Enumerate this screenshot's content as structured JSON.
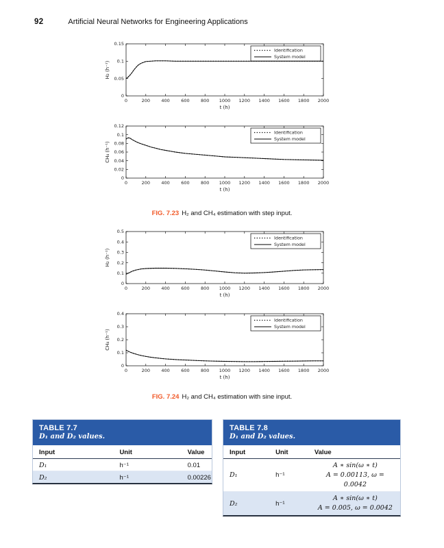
{
  "page": {
    "number": "92",
    "running_title": "Artificial Neural Networks for Engineering Applications"
  },
  "colors": {
    "accent_orange": "#f15a29",
    "table_header_blue": "#2a5ba7",
    "table_row_alt": "#dbe5f3",
    "line_color": "#000000"
  },
  "figures": [
    {
      "caption_label": "FIG. 7.23",
      "caption_text": "H₂ and CH₄ estimation with step input."
    },
    {
      "caption_label": "FIG. 7.24",
      "caption_text": "H₂ and CH₄ estimation with sine input."
    }
  ],
  "chart_data": [
    {
      "id": "fig723-h2-step",
      "type": "line",
      "title": "",
      "xlabel": "t (h)",
      "ylabel": "H₂ (h⁻¹)",
      "xlim": [
        0,
        2000
      ],
      "ylim": [
        0,
        0.15
      ],
      "xticks": [
        0,
        200,
        400,
        600,
        800,
        1000,
        1200,
        1400,
        1600,
        1800,
        2000
      ],
      "yticks": [
        0,
        0.05,
        0.1,
        0.15
      ],
      "grid": false,
      "legend_position": "top-right",
      "x": [
        0,
        20,
        40,
        60,
        80,
        100,
        120,
        140,
        160,
        180,
        200,
        250,
        300,
        400,
        500,
        600,
        800,
        1000,
        1200,
        1400,
        1600,
        1800,
        2000
      ],
      "series": [
        {
          "name": "Identification",
          "style": "dotted",
          "values": [
            0.05,
            0.054,
            0.06,
            0.067,
            0.075,
            0.082,
            0.088,
            0.092,
            0.095,
            0.097,
            0.099,
            0.1,
            0.101,
            0.101,
            0.1,
            0.1,
            0.1,
            0.1,
            0.1,
            0.1,
            0.1,
            0.1,
            0.1
          ]
        },
        {
          "name": "System model",
          "style": "solid",
          "values": [
            0.05,
            0.054,
            0.06,
            0.067,
            0.075,
            0.082,
            0.088,
            0.092,
            0.095,
            0.097,
            0.099,
            0.1,
            0.101,
            0.101,
            0.1,
            0.1,
            0.1,
            0.1,
            0.1,
            0.1,
            0.1,
            0.1,
            0.1
          ]
        }
      ]
    },
    {
      "id": "fig723-ch4-step",
      "type": "line",
      "title": "",
      "xlabel": "t (h)",
      "ylabel": "CH₄ (h⁻¹)",
      "xlim": [
        0,
        2000
      ],
      "ylim": [
        0,
        0.12
      ],
      "xticks": [
        0,
        200,
        400,
        600,
        800,
        1000,
        1200,
        1400,
        1600,
        1800,
        2000
      ],
      "yticks": [
        0,
        0.02,
        0.04,
        0.06,
        0.08,
        0.1,
        0.12
      ],
      "grid": false,
      "legend_position": "top-right",
      "x": [
        0,
        20,
        40,
        60,
        100,
        140,
        180,
        220,
        260,
        300,
        350,
        400,
        500,
        600,
        700,
        800,
        900,
        1000,
        1100,
        1200,
        1400,
        1600,
        1800,
        2000
      ],
      "series": [
        {
          "name": "Identification",
          "style": "dotted",
          "values": [
            0.09,
            0.093,
            0.092,
            0.089,
            0.084,
            0.08,
            0.077,
            0.074,
            0.071,
            0.069,
            0.066,
            0.064,
            0.06,
            0.057,
            0.055,
            0.053,
            0.051,
            0.049,
            0.048,
            0.047,
            0.045,
            0.043,
            0.042,
            0.041
          ]
        },
        {
          "name": "System model",
          "style": "solid",
          "values": [
            0.09,
            0.093,
            0.092,
            0.089,
            0.084,
            0.08,
            0.077,
            0.074,
            0.071,
            0.069,
            0.066,
            0.064,
            0.06,
            0.057,
            0.055,
            0.053,
            0.051,
            0.049,
            0.048,
            0.047,
            0.045,
            0.043,
            0.042,
            0.041
          ]
        }
      ]
    },
    {
      "id": "fig724-h2-sine",
      "type": "line",
      "title": "",
      "xlabel": "t (h)",
      "ylabel": "H₂ (h⁻¹)",
      "xlim": [
        0,
        2000
      ],
      "ylim": [
        0,
        0.5
      ],
      "xticks": [
        0,
        200,
        400,
        600,
        800,
        1000,
        1200,
        1400,
        1600,
        1800,
        2000
      ],
      "yticks": [
        0,
        0.1,
        0.2,
        0.3,
        0.4,
        0.5
      ],
      "grid": false,
      "legend_position": "top-right",
      "x": [
        0,
        30,
        60,
        100,
        150,
        200,
        300,
        400,
        500,
        600,
        700,
        800,
        900,
        1000,
        1100,
        1200,
        1300,
        1400,
        1500,
        1600,
        1700,
        1800,
        1900,
        2000
      ],
      "series": [
        {
          "name": "Identification",
          "style": "dotted",
          "values": [
            0.09,
            0.103,
            0.118,
            0.13,
            0.14,
            0.145,
            0.148,
            0.148,
            0.146,
            0.142,
            0.137,
            0.13,
            0.121,
            0.112,
            0.104,
            0.1,
            0.102,
            0.106,
            0.112,
            0.119,
            0.126,
            0.131,
            0.133,
            0.134
          ]
        },
        {
          "name": "System model",
          "style": "solid",
          "values": [
            0.09,
            0.103,
            0.118,
            0.13,
            0.14,
            0.145,
            0.148,
            0.148,
            0.146,
            0.142,
            0.137,
            0.13,
            0.121,
            0.112,
            0.104,
            0.1,
            0.102,
            0.106,
            0.112,
            0.119,
            0.126,
            0.131,
            0.133,
            0.134
          ]
        }
      ]
    },
    {
      "id": "fig724-ch4-sine",
      "type": "line",
      "title": "",
      "xlabel": "t (h)",
      "ylabel": "CH₄ (h⁻¹)",
      "xlim": [
        0,
        2000
      ],
      "ylim": [
        0,
        0.4
      ],
      "xticks": [
        0,
        200,
        400,
        600,
        800,
        1000,
        1200,
        1400,
        1600,
        1800,
        2000
      ],
      "yticks": [
        0,
        0.1,
        0.2,
        0.3,
        0.4
      ],
      "grid": false,
      "legend_position": "top-right",
      "x": [
        0,
        40,
        80,
        120,
        160,
        200,
        250,
        300,
        350,
        400,
        500,
        600,
        700,
        800,
        900,
        1000,
        1100,
        1200,
        1300,
        1400,
        1500,
        1600,
        1700,
        1800,
        1900,
        2000
      ],
      "series": [
        {
          "name": "Identification",
          "style": "dotted",
          "values": [
            0.12,
            0.105,
            0.094,
            0.085,
            0.078,
            0.072,
            0.066,
            0.061,
            0.057,
            0.053,
            0.048,
            0.044,
            0.041,
            0.038,
            0.036,
            0.034,
            0.033,
            0.032,
            0.032,
            0.033,
            0.034,
            0.035,
            0.036,
            0.037,
            0.038,
            0.038
          ]
        },
        {
          "name": "System model",
          "style": "solid",
          "values": [
            0.12,
            0.105,
            0.094,
            0.085,
            0.078,
            0.072,
            0.066,
            0.061,
            0.057,
            0.053,
            0.048,
            0.044,
            0.041,
            0.038,
            0.036,
            0.034,
            0.033,
            0.032,
            0.032,
            0.033,
            0.034,
            0.035,
            0.036,
            0.037,
            0.038,
            0.038
          ]
        }
      ]
    }
  ],
  "tables": [
    {
      "label": "TABLE 7.7",
      "subtitle": "D₁ and D₂ values.",
      "columns": [
        "Input",
        "Unit",
        "Value"
      ],
      "rows": [
        {
          "input": "D₁",
          "unit": "h⁻¹",
          "value_lines": [
            "0.01"
          ]
        },
        {
          "input": "D₂",
          "unit": "h⁻¹",
          "value_lines": [
            "0.00226"
          ]
        }
      ]
    },
    {
      "label": "TABLE 7.8",
      "subtitle": "D₁ and D₂ values.",
      "columns": [
        "Input",
        "Unit",
        "Value"
      ],
      "rows": [
        {
          "input": "D₁",
          "unit": "h⁻¹",
          "value_lines": [
            "A ∗ sin(ω ∗ t)",
            "A = 0.00113,    ω = 0.0042"
          ]
        },
        {
          "input": "D₂",
          "unit": "h⁻¹",
          "value_lines": [
            "A ∗ sin(ω ∗ t)",
            "A = 0.005,    ω = 0.0042"
          ]
        }
      ]
    }
  ]
}
